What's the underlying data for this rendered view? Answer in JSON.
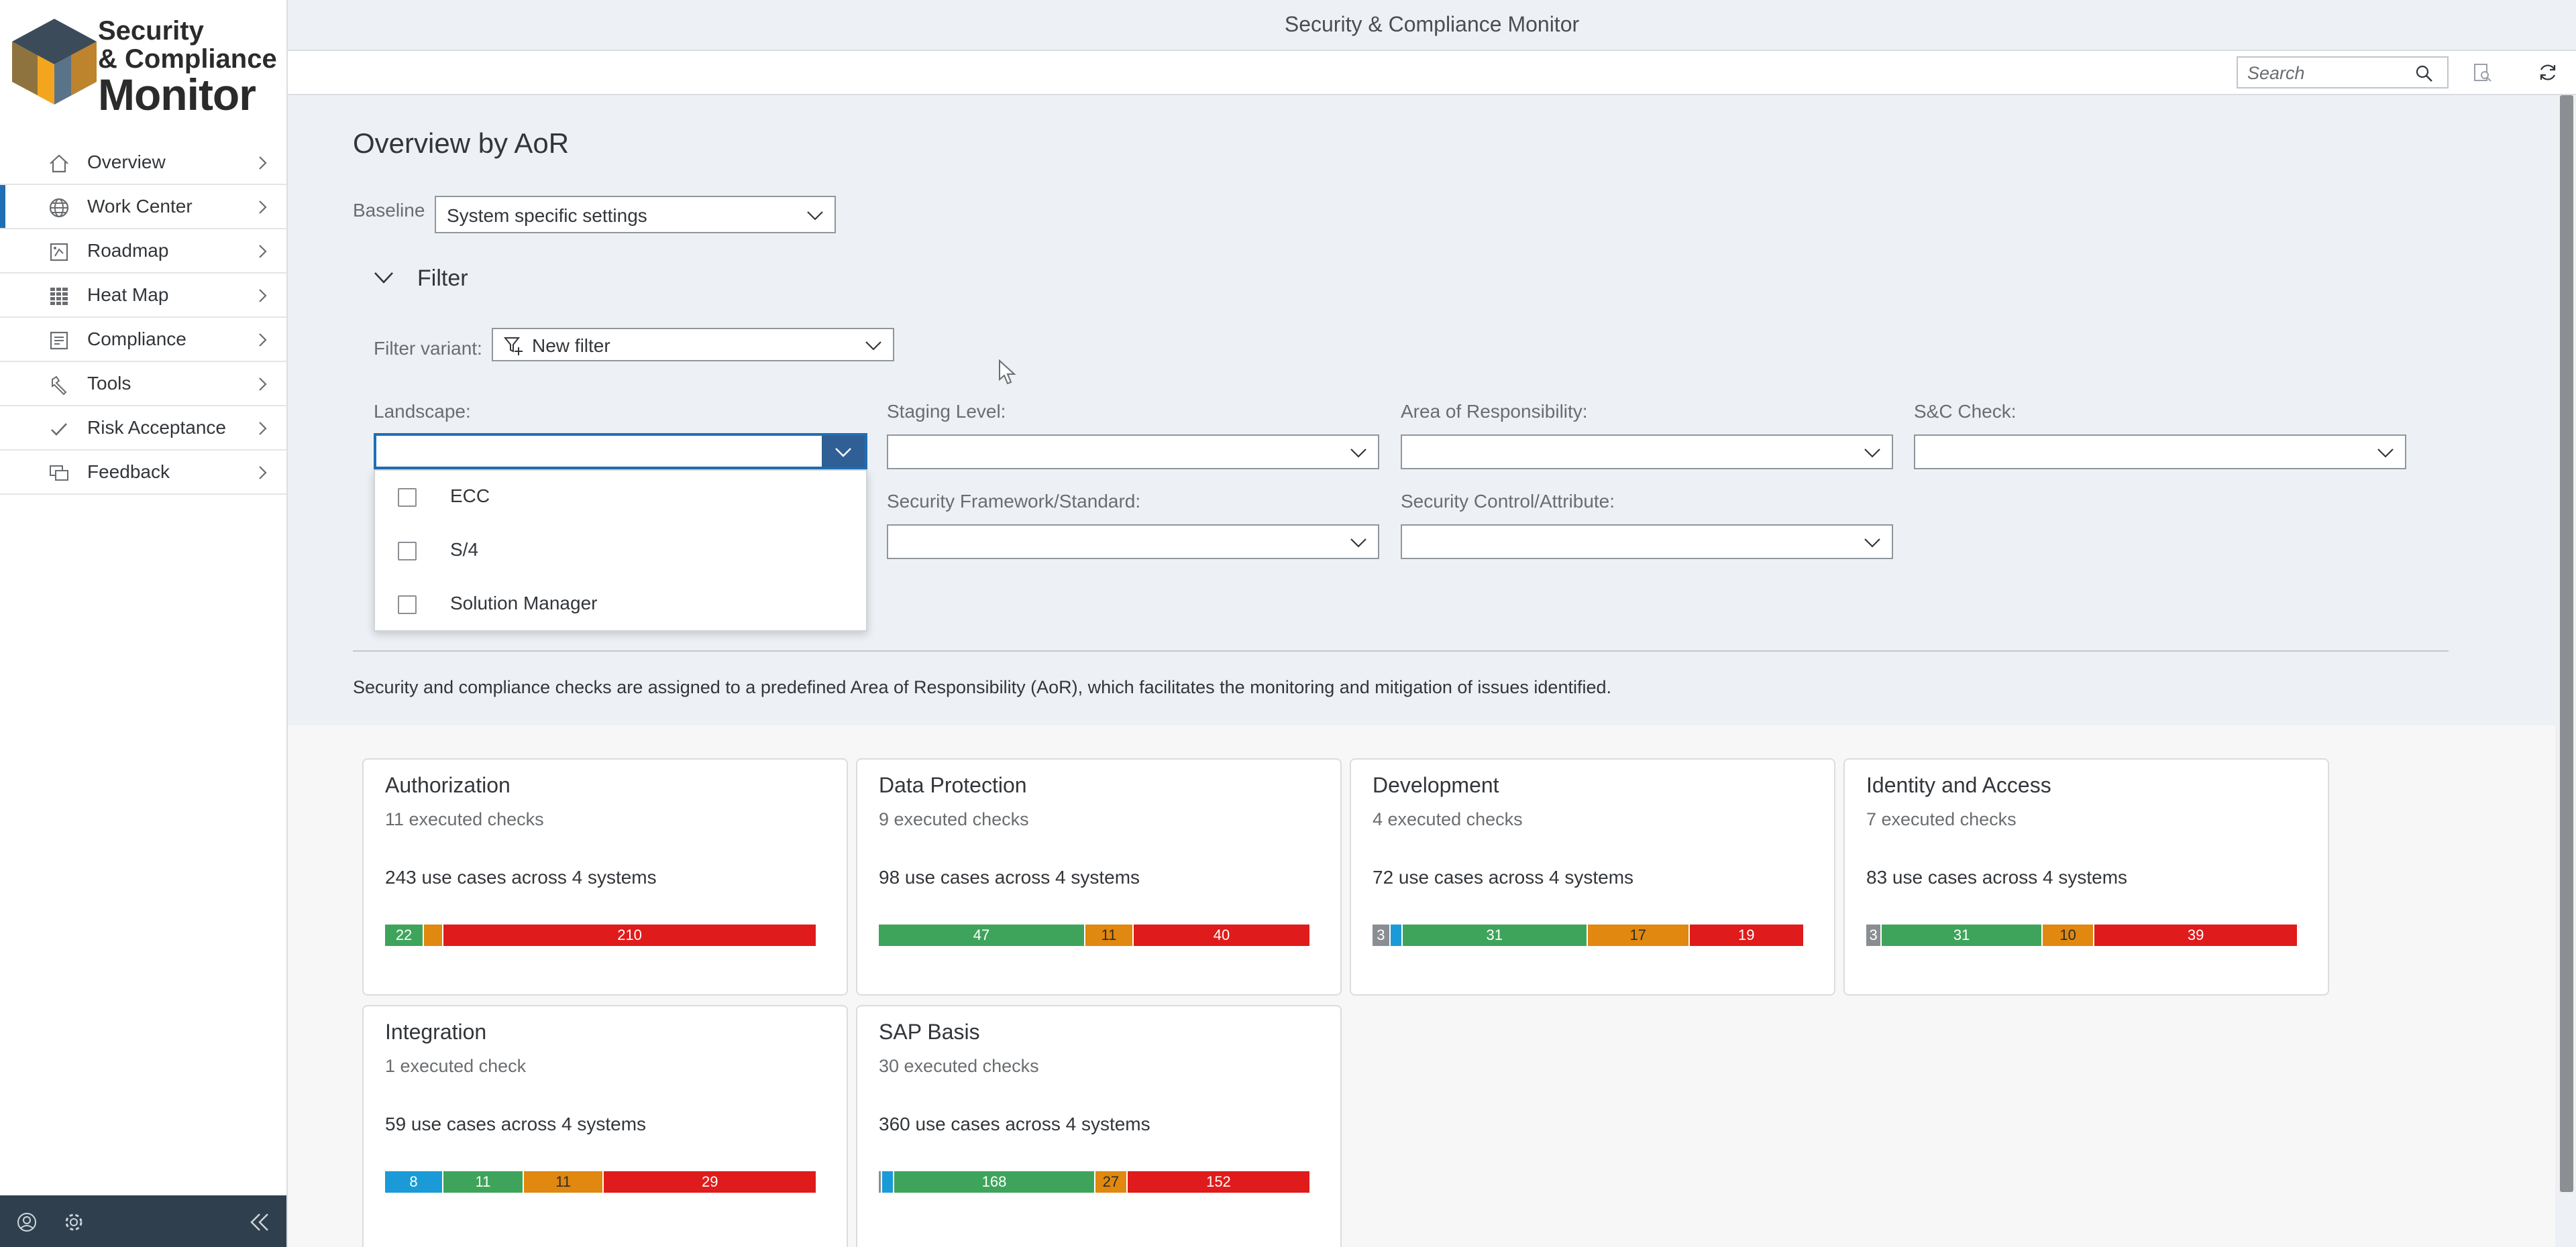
{
  "app": {
    "title": "Security & Compliance Monitor"
  },
  "logo": {
    "line1": "Security",
    "line2": "& Compliance",
    "line3": "Monitor"
  },
  "sidebar": {
    "items": [
      {
        "label": "Overview",
        "icon": "home-icon"
      },
      {
        "label": "Work Center",
        "icon": "globe-icon",
        "active": true
      },
      {
        "label": "Roadmap",
        "icon": "roadmap-icon"
      },
      {
        "label": "Heat Map",
        "icon": "heatmap-grid-icon"
      },
      {
        "label": "Compliance",
        "icon": "compliance-icon"
      },
      {
        "label": "Tools",
        "icon": "wrench-icon"
      },
      {
        "label": "Risk Acceptance",
        "icon": "checkmark-icon"
      },
      {
        "label": "Feedback",
        "icon": "feedback-icon"
      }
    ],
    "footer": {
      "icons": [
        "user-profile-icon",
        "settings-gear-icon",
        "collapse-sidebar-icon"
      ]
    }
  },
  "toolbar": {
    "search_placeholder": "Search",
    "icons": [
      "search-icon",
      "document-search-icon",
      "refresh-icon"
    ]
  },
  "page": {
    "title": "Overview by AoR",
    "baseline": {
      "label": "Baseline",
      "value": "System specific settings"
    },
    "filter": {
      "section_label": "Filter",
      "variant_label": "Filter variant:",
      "variant_value": "New filter",
      "fields": {
        "landscape": "Landscape:",
        "staging": "Staging Level:",
        "aor": "Area of Responsibility:",
        "check": "S&C Check:",
        "framework": "Security Framework/Standard:",
        "control": "Security Control/Attribute:"
      },
      "landscape_options": [
        "ECC",
        "S/4",
        "Solution Manager"
      ]
    },
    "description": "Security and compliance checks are assigned to a predefined Area of Responsibility (AoR), which facilitates the monitoring and mitigation of issues identified."
  },
  "colors": {
    "grey": "#8a8e92",
    "blue": "#1a9bd7",
    "green": "#3fa45b",
    "orange": "#e0880f",
    "red": "#e01b1b"
  },
  "cards": [
    {
      "title": "Authorization",
      "checks": "11 executed checks",
      "use_cases": "243 use cases across 4 systems",
      "segments": [
        {
          "color": "green",
          "value": 22,
          "label": "22"
        },
        {
          "color": "orange",
          "value": 11,
          "label": ""
        },
        {
          "color": "red",
          "value": 210,
          "label": "210"
        }
      ]
    },
    {
      "title": "Data Protection",
      "checks": "9 executed checks",
      "use_cases": "98 use cases across 4 systems",
      "segments": [
        {
          "color": "green",
          "value": 47,
          "label": "47"
        },
        {
          "color": "orange",
          "value": 11,
          "label": "11"
        },
        {
          "color": "red",
          "value": 40,
          "label": "40"
        }
      ]
    },
    {
      "title": "Development",
      "checks": "4 executed checks",
      "use_cases": "72 use cases across 4 systems",
      "segments": [
        {
          "color": "grey",
          "value": 3,
          "label": "3"
        },
        {
          "color": "blue",
          "value": 2,
          "label": ""
        },
        {
          "color": "green",
          "value": 31,
          "label": "31"
        },
        {
          "color": "orange",
          "value": 17,
          "label": "17"
        },
        {
          "color": "red",
          "value": 19,
          "label": "19"
        }
      ]
    },
    {
      "title": "Identity and Access",
      "checks": "7 executed checks",
      "use_cases": "83 use cases across 4 systems",
      "segments": [
        {
          "color": "grey",
          "value": 3,
          "label": "3"
        },
        {
          "color": "green",
          "value": 31,
          "label": "31"
        },
        {
          "color": "orange",
          "value": 10,
          "label": "10"
        },
        {
          "color": "red",
          "value": 39,
          "label": "39"
        }
      ]
    },
    {
      "title": "Integration",
      "checks": "1 executed check",
      "use_cases": "59 use cases across 4 systems",
      "segments": [
        {
          "color": "blue",
          "value": 8,
          "label": "8"
        },
        {
          "color": "green",
          "value": 11,
          "label": "11"
        },
        {
          "color": "orange",
          "value": 11,
          "label": "11"
        },
        {
          "color": "red",
          "value": 29,
          "label": "29"
        }
      ]
    },
    {
      "title": "SAP Basis",
      "checks": "30 executed checks",
      "use_cases": "360 use cases across 4 systems",
      "segments": [
        {
          "color": "grey",
          "value": 3,
          "label": ""
        },
        {
          "color": "blue",
          "value": 10,
          "label": ""
        },
        {
          "color": "green",
          "value": 168,
          "label": "168"
        },
        {
          "color": "orange",
          "value": 27,
          "label": "27"
        },
        {
          "color": "red",
          "value": 152,
          "label": "152"
        }
      ]
    }
  ]
}
